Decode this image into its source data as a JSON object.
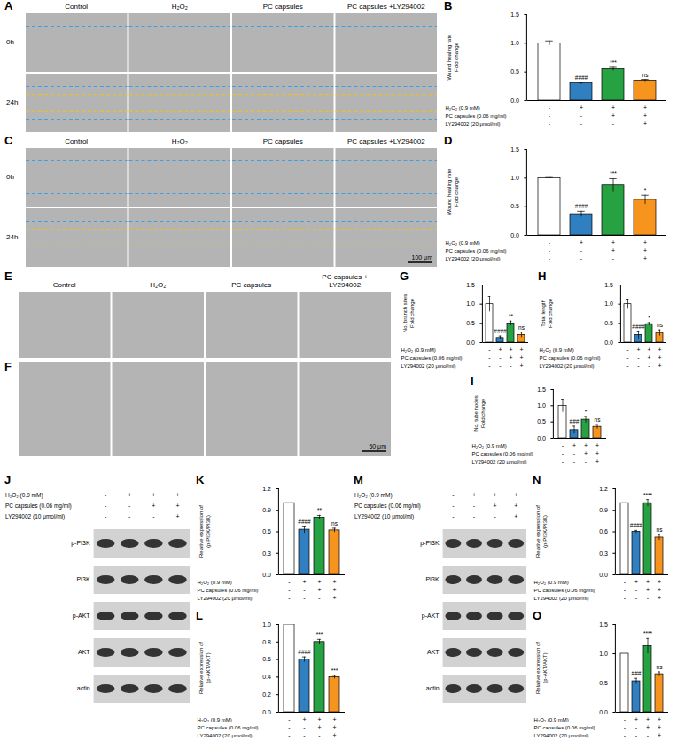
{
  "chart_data": [
    {
      "panel": "B",
      "type": "bar",
      "y_label": "Wound healing rate\nFold change",
      "categories": [
        null,
        null,
        null,
        null
      ],
      "values": [
        1.0,
        0.3,
        0.55,
        0.35
      ],
      "errors": [
        0.04,
        0.02,
        0.03,
        0.02
      ],
      "significance": [
        null,
        "####",
        "***",
        "ns"
      ],
      "colors": [
        "#ffffff",
        "#2f7fc1",
        "#27a243",
        "#f7941d"
      ],
      "ylim": [
        0,
        1.5
      ],
      "yticks": [
        {
          "value": 0,
          "label": "0.0"
        },
        0.5,
        {
          "value": 1,
          "label": "1.0"
        },
        1.5
      ],
      "tick_labels": "y",
      "treatments": [
        {
          "label": "H₂O₂ (0.9 mM)",
          "signs": [
            "-",
            "+",
            "+",
            "+"
          ]
        },
        {
          "label": "PC capsules (0.06 mg/ml)",
          "signs": [
            "-",
            "-",
            "+",
            "+"
          ]
        },
        {
          "label": "LY294002 (20 μmol/ml)",
          "signs": [
            "-",
            "-",
            "-",
            "+"
          ]
        }
      ]
    },
    {
      "panel": "D",
      "type": "bar",
      "y_label": "Wound healing rate\nFold change",
      "categories": [
        null,
        null,
        null,
        null
      ],
      "values": [
        1.0,
        0.37,
        0.87,
        0.62
      ],
      "errors": [
        0.01,
        0.05,
        0.12,
        0.08
      ],
      "significance": [
        null,
        "####",
        "***",
        "*"
      ],
      "colors": [
        "#ffffff",
        "#2f7fc1",
        "#27a243",
        "#f7941d"
      ],
      "ylim": [
        0,
        1.5
      ],
      "yticks": [
        {
          "value": 0,
          "label": "0.0"
        },
        0.5,
        {
          "value": 1,
          "label": "1.0"
        },
        1.5
      ],
      "tick_labels": "y",
      "treatments": [
        {
          "label": "H₂O₂ (0.9 mM)",
          "signs": [
            "-",
            "+",
            "+",
            "+"
          ]
        },
        {
          "label": "PC capsules (0.06 mg/ml)",
          "signs": [
            "-",
            "-",
            "+",
            "+"
          ]
        },
        {
          "label": "LY294002 (20 μmol/ml)",
          "signs": [
            "-",
            "-",
            "-",
            "+"
          ]
        }
      ]
    },
    {
      "panel": "G",
      "type": "bar",
      "y_label": "No. branch sites\nFold change",
      "categories": [
        null,
        null,
        null,
        null
      ],
      "values": [
        1.0,
        0.12,
        0.5,
        0.2
      ],
      "errors": [
        0.2,
        0.05,
        0.06,
        0.07
      ],
      "significance": [
        null,
        "####",
        "**",
        "ns"
      ],
      "colors": [
        "#ffffff",
        "#2f7fc1",
        "#27a243",
        "#f7941d"
      ],
      "ylim": [
        0,
        1.5
      ],
      "yticks": [
        {
          "value": 0,
          "label": "0.0"
        },
        0.5,
        {
          "value": 1,
          "label": "1.0"
        },
        1.5
      ],
      "tick_labels": "y",
      "treatments": [
        {
          "label": "H₂O₂ (0.9 mM)",
          "signs": [
            "-",
            "+",
            "+",
            "+"
          ]
        },
        {
          "label": "PC capsules (0.06 mg/ml)",
          "signs": [
            "-",
            "-",
            "+",
            "+"
          ]
        },
        {
          "label": "LY294002 (20 μmol/ml)",
          "signs": [
            "-",
            "-",
            "-",
            "+"
          ]
        }
      ]
    },
    {
      "panel": "H",
      "type": "bar",
      "y_label": "Total length\nFold change",
      "categories": [
        null,
        null,
        null,
        null
      ],
      "values": [
        1.0,
        0.2,
        0.48,
        0.25
      ],
      "errors": [
        0.13,
        0.1,
        0.04,
        0.08
      ],
      "significance": [
        null,
        "####",
        "*",
        "ns"
      ],
      "colors": [
        "#ffffff",
        "#2f7fc1",
        "#27a243",
        "#f7941d"
      ],
      "ylim": [
        0,
        1.5
      ],
      "yticks": [
        {
          "value": 0,
          "label": "0.0"
        },
        0.5,
        {
          "value": 1,
          "label": "1.0"
        },
        1.5
      ],
      "tick_labels": "y",
      "treatments": [
        {
          "label": "H₂O₂ (0.9 mM)",
          "signs": [
            "-",
            "+",
            "+",
            "+"
          ]
        },
        {
          "label": "PC capsules (0.06 mg/ml)",
          "signs": [
            "-",
            "-",
            "+",
            "+"
          ]
        },
        {
          "label": "LY294002 (20 μmol/ml)",
          "signs": [
            "-",
            "-",
            "-",
            "+"
          ]
        }
      ]
    },
    {
      "panel": "I",
      "type": "bar",
      "y_label": "No. tube nodes\nFold change",
      "categories": [
        null,
        null,
        null,
        null
      ],
      "values": [
        1.0,
        0.25,
        0.57,
        0.35
      ],
      "errors": [
        0.2,
        0.12,
        0.1,
        0.07
      ],
      "significance": [
        null,
        "###",
        "*",
        "ns"
      ],
      "colors": [
        "#ffffff",
        "#2f7fc1",
        "#27a243",
        "#f7941d"
      ],
      "ylim": [
        0,
        1.5
      ],
      "yticks": [
        {
          "value": 0,
          "label": "0.0"
        },
        0.5,
        {
          "value": 1,
          "label": "1.0"
        },
        1.5
      ],
      "tick_labels": "y",
      "treatments": [
        {
          "label": "H₂O₂ (0.9 mM)",
          "signs": [
            "-",
            "+",
            "+",
            "+"
          ]
        },
        {
          "label": "PC capsules (0.06 mg/ml)",
          "signs": [
            "-",
            "-",
            "+",
            "+"
          ]
        },
        {
          "label": "LY294002 (20 μmol/ml)",
          "signs": [
            "-",
            "-",
            "-",
            "+"
          ]
        }
      ]
    },
    {
      "panel": "K",
      "type": "bar",
      "y_label": "Relative expression of\n(p-PI3K/PI3K)",
      "categories": [
        null,
        null,
        null,
        null
      ],
      "values": [
        1.0,
        0.63,
        0.8,
        0.62
      ],
      "errors": [
        0,
        0.05,
        0.03,
        0.03
      ],
      "significance": [
        null,
        "####",
        "**",
        "ns"
      ],
      "colors": [
        "#ffffff",
        "#2f7fc1",
        "#27a243",
        "#f7941d"
      ],
      "ylim": [
        0,
        1.2
      ],
      "yticks": [
        {
          "value": 0,
          "label": "0.0"
        },
        0.3,
        0.6,
        0.9,
        1.2
      ],
      "tick_labels": "y",
      "treatments": [
        {
          "label": "H₂O₂ (0.9 mM)",
          "signs": [
            "-",
            "+",
            "+",
            "+"
          ]
        },
        {
          "label": "PC capsules (0.06 mg/ml)",
          "signs": [
            "-",
            "-",
            "+",
            "+"
          ]
        },
        {
          "label": "LY294002 (20 μmol/ml)",
          "signs": [
            "-",
            "-",
            "-",
            "+"
          ]
        }
      ]
    },
    {
      "panel": "L",
      "type": "bar",
      "y_label": "Relative expression of\n(p-AKT/AKT)",
      "categories": [
        null,
        null,
        null,
        null
      ],
      "values": [
        1.0,
        0.6,
        0.8,
        0.4
      ],
      "errors": [
        0,
        0.03,
        0.03,
        0.02
      ],
      "significance": [
        null,
        "####",
        "***",
        "***"
      ],
      "colors": [
        "#ffffff",
        "#2f7fc1",
        "#27a243",
        "#f7941d"
      ],
      "ylim": [
        0,
        1.0
      ],
      "yticks": [
        {
          "value": 0,
          "label": "0.0"
        },
        0.2,
        0.4,
        0.6,
        0.8,
        {
          "value": 1,
          "label": "1.0"
        }
      ],
      "tick_labels": "y",
      "treatments": [
        {
          "label": "H₂O₂ (0.9 mM)",
          "signs": [
            "-",
            "+",
            "+",
            "+"
          ]
        },
        {
          "label": "PC capsules (0.06 mg/ml)",
          "signs": [
            "-",
            "-",
            "+",
            "+"
          ]
        },
        {
          "label": "LY294002 (20 μmol/ml)",
          "signs": [
            "-",
            "-",
            "-",
            "+"
          ]
        }
      ]
    },
    {
      "panel": "N",
      "type": "bar",
      "y_label": "Relative expression of\n(p-PI3K/PI3K)",
      "categories": [
        null,
        null,
        null,
        null
      ],
      "values": [
        1.0,
        0.6,
        1.0,
        0.52
      ],
      "errors": [
        0,
        0.02,
        0.05,
        0.04
      ],
      "significance": [
        null,
        "####",
        "****",
        "ns"
      ],
      "colors": [
        "#ffffff",
        "#2f7fc1",
        "#27a243",
        "#f7941d"
      ],
      "ylim": [
        0,
        1.2
      ],
      "yticks": [
        {
          "value": 0,
          "label": "0.0"
        },
        0.3,
        0.6,
        0.9,
        1.2
      ],
      "tick_labels": "y",
      "treatments": [
        {
          "label": "H₂O₂ (0.9 mM)",
          "signs": [
            "-",
            "+",
            "+",
            "+"
          ]
        },
        {
          "label": "PC capsules (0.06 mg/ml)",
          "signs": [
            "-",
            "-",
            "+",
            "+"
          ]
        },
        {
          "label": "LY294002 (20 μmol/ml)",
          "signs": [
            "-",
            "-",
            "-",
            "+"
          ]
        }
      ]
    },
    {
      "panel": "O",
      "type": "bar",
      "y_label": "Relative expression of\n(p-AKT/AKT)",
      "categories": [
        null,
        null,
        null,
        null
      ],
      "values": [
        1.0,
        0.53,
        1.13,
        0.65
      ],
      "errors": [
        0,
        0.05,
        0.13,
        0.04
      ],
      "significance": [
        null,
        "###",
        "****",
        "ns"
      ],
      "colors": [
        "#ffffff",
        "#2f7fc1",
        "#27a243",
        "#f7941d"
      ],
      "ylim": [
        0,
        1.5
      ],
      "yticks": [
        {
          "value": 0,
          "label": "0.0"
        },
        0.5,
        {
          "value": 1,
          "label": "1.0"
        },
        1.5
      ],
      "tick_labels": "y",
      "treatments": [
        {
          "label": "H₂O₂ (0.9 mM)",
          "signs": [
            "-",
            "+",
            "+",
            "+"
          ]
        },
        {
          "label": "PC capsules (0.06 mg/ml)",
          "signs": [
            "-",
            "-",
            "+",
            "+"
          ]
        },
        {
          "label": "LY294002 (20 μmol/ml)",
          "signs": [
            "-",
            "-",
            "-",
            "+"
          ]
        }
      ]
    }
  ],
  "images": [
    {
      "panel": "A",
      "columns": [
        "Control",
        "H₂O₂",
        "PC capsules",
        "PC capsules +LY294002"
      ],
      "rows": [
        "0h",
        "24h"
      ]
    },
    {
      "panel": "C",
      "columns": [
        "Control",
        "H₂O₂",
        "PC capsules",
        "PC capsules +LY294002"
      ],
      "rows": [
        "0h",
        "24h"
      ],
      "scale_bar": "100 μm"
    },
    {
      "panel": "E",
      "columns": [
        "Control",
        "H₂O₂",
        "PC capsules",
        "PC capsules + LY294002"
      ]
    },
    {
      "panel": "F",
      "scale_bar": "50 μm"
    }
  ],
  "blots": [
    {
      "panel": "J",
      "treatments": [
        {
          "label": "H₂O₂ (0.9 mM)",
          "signs": [
            "-",
            "+",
            "+",
            "+"
          ]
        },
        {
          "label": "PC capsules (0.06 mg/ml)",
          "signs": [
            "-",
            "-",
            "+",
            "+"
          ]
        },
        {
          "label": "LY294002 (10 μmol/ml)",
          "signs": [
            "-",
            "-",
            "-",
            "+"
          ]
        }
      ],
      "bands": [
        "p-PI3K",
        "PI3K",
        "p-AKT",
        "AKT",
        "actin"
      ]
    },
    {
      "panel": "M",
      "treatments": [
        {
          "label": "H₂O₂ (0.9 mM)",
          "signs": [
            "-",
            "+",
            "+",
            "+"
          ]
        },
        {
          "label": "PC capsules (0.06 mg/ml)",
          "signs": [
            "-",
            "-",
            "+",
            "+"
          ]
        },
        {
          "label": "LY294002 (10 μmol/ml)",
          "signs": [
            "-",
            "-",
            "-",
            "+"
          ]
        }
      ],
      "bands": [
        "p-PI3K",
        "PI3K",
        "p-AKT",
        "AKT",
        "actin"
      ]
    }
  ]
}
